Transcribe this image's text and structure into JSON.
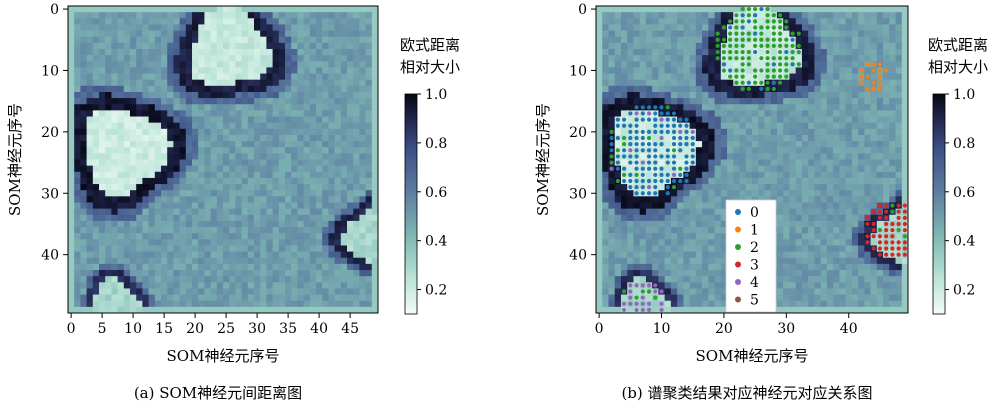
{
  "chart_data": [
    {
      "type": "heatmap",
      "caption": "(a) SOM神经元间距离图",
      "xlabel": "SOM神经元序号",
      "ylabel": "SOM神经元序号",
      "xlim": [
        0,
        49
      ],
      "ylim": [
        49,
        0
      ],
      "x_ticks": [
        0,
        5,
        10,
        15,
        20,
        25,
        30,
        35,
        40,
        45
      ],
      "y_ticks": [
        0,
        10,
        20,
        30,
        40
      ],
      "grid_size": [
        50,
        50
      ],
      "colorbar": {
        "title_lines": [
          "欧式距离",
          "相对大小"
        ],
        "range": [
          0.1,
          1.0
        ],
        "ticks": [
          0.2,
          0.4,
          0.6,
          0.8,
          1.0
        ],
        "tick_labels": [
          "0.2",
          "0.4",
          "0.6",
          "0.8",
          "1.0"
        ]
      },
      "background_value": 0.55,
      "clusters": [
        {
          "row": 6.5,
          "col": 25.5,
          "radius": 7.5,
          "inner_value": 0.22,
          "boundary_value": 0.92
        },
        {
          "row": 23,
          "col": 8.5,
          "radius": 8,
          "inner_value": 0.2,
          "boundary_value": 0.95
        },
        {
          "row": 37,
          "col": 49,
          "radius": 5.5,
          "inner_value": 0.3,
          "boundary_value": 0.9
        },
        {
          "row": 48,
          "col": 7,
          "radius": 4.5,
          "inner_value": 0.3,
          "boundary_value": 0.88
        }
      ]
    },
    {
      "type": "heatmap",
      "caption": "(b) 谱聚类结果对应神经元对应关系图",
      "xlabel": "SOM神经元序号",
      "ylabel": "SOM神经元序号",
      "xlim": [
        0,
        49
      ],
      "ylim": [
        49,
        0
      ],
      "x_ticks": [
        0,
        10,
        20,
        30,
        40
      ],
      "y_ticks": [
        0,
        10,
        20,
        30,
        40
      ],
      "grid_size": [
        50,
        50
      ],
      "colorbar": {
        "title_lines": [
          "欧式距离",
          "相对大小"
        ],
        "range": [
          0.1,
          1.0
        ],
        "ticks": [
          0.2,
          0.4,
          0.6,
          0.8,
          1.0
        ],
        "tick_labels": [
          "0.2",
          "0.4",
          "0.6",
          "0.8",
          "1.0"
        ]
      },
      "legend": {
        "placement": "lower-center",
        "entries": [
          {
            "label": "0",
            "color": "#1f77b4"
          },
          {
            "label": "1",
            "color": "#ff7f0e"
          },
          {
            "label": "2",
            "color": "#2ca02c"
          },
          {
            "label": "3",
            "color": "#d62728"
          },
          {
            "label": "4",
            "color": "#9467bd"
          },
          {
            "label": "5",
            "color": "#8c564b"
          }
        ]
      },
      "cluster_regions": [
        {
          "row": 6.5,
          "col": 25.5,
          "radius": 7,
          "dominant_labels": [
            "2",
            "0"
          ]
        },
        {
          "row": 11,
          "col": 44,
          "radius": 2.5,
          "dominant_labels": [
            "1"
          ]
        },
        {
          "row": 23,
          "col": 8.5,
          "radius": 7.5,
          "dominant_labels": [
            "0",
            "2",
            "4"
          ]
        },
        {
          "row": 36,
          "col": 47,
          "radius": 4.5,
          "dominant_labels": [
            "3",
            "2"
          ]
        },
        {
          "row": 47.5,
          "col": 7,
          "radius": 3.5,
          "dominant_labels": [
            "4",
            "2"
          ]
        }
      ]
    }
  ]
}
